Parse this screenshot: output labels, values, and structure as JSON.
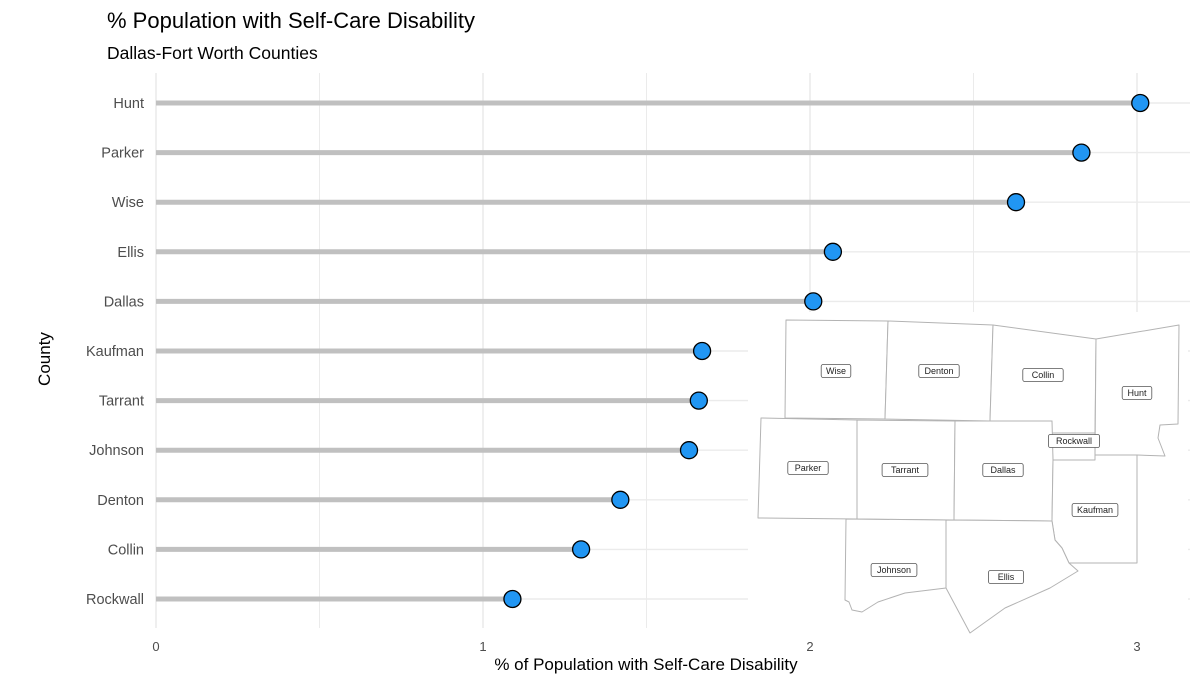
{
  "chart_data": {
    "type": "lollipop",
    "title": "% Population with Self-Care Disability",
    "subtitle": "Dallas-Fort Worth Counties",
    "xlabel": "% of Population with Self-Care Disability",
    "ylabel": "County",
    "xlim": [
      0,
      3.15
    ],
    "xticks": [
      "0",
      "1",
      "2",
      "3"
    ],
    "grid": true,
    "categories": [
      "Hunt",
      "Parker",
      "Wise",
      "Ellis",
      "Dallas",
      "Kaufman",
      "Tarrant",
      "Johnson",
      "Denton",
      "Collin",
      "Rockwall"
    ],
    "values": [
      3.01,
      2.83,
      2.63,
      2.07,
      2.01,
      1.67,
      1.66,
      1.63,
      1.42,
      1.3,
      1.09
    ],
    "colors": {
      "point": "#2196f3",
      "stem": "#c0c0c0",
      "grid": "#ebebeb"
    }
  },
  "inset_map": {
    "counties": [
      {
        "name": "Wise",
        "label": "Wise"
      },
      {
        "name": "Denton",
        "label": "Denton"
      },
      {
        "name": "Collin",
        "label": "Collin"
      },
      {
        "name": "Hunt",
        "label": "Hunt"
      },
      {
        "name": "Rockwall",
        "label": "Rockwall"
      },
      {
        "name": "Parker",
        "label": "Parker"
      },
      {
        "name": "Tarrant",
        "label": "Tarrant"
      },
      {
        "name": "Dallas",
        "label": "Dallas"
      },
      {
        "name": "Kaufman",
        "label": "Kaufman"
      },
      {
        "name": "Johnson",
        "label": "Johnson"
      },
      {
        "name": "Ellis",
        "label": "Ellis"
      }
    ]
  }
}
